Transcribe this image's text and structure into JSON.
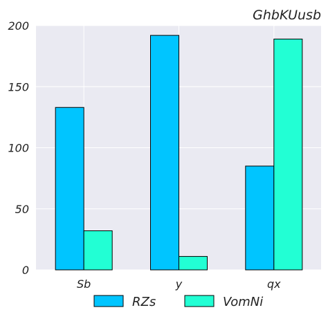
{
  "chart_data": {
    "type": "bar",
    "title": "GhbKUusb",
    "xlabel": "",
    "ylabel": "",
    "categories": [
      "Sb",
      "y",
      "qx"
    ],
    "series": [
      {
        "name": "RZs",
        "values": [
          133,
          192,
          85
        ],
        "color": "#00c5ff"
      },
      {
        "name": "VomNi",
        "values": [
          32,
          11,
          189
        ],
        "color": "#22ffd4"
      }
    ],
    "ylim": [
      0,
      200
    ],
    "yticks": [
      "0",
      "50",
      "100",
      "150",
      "200"
    ],
    "grid": true,
    "legend_position": "bottom-center",
    "background": "#eaeaf2",
    "bar_edge": "#000000"
  }
}
